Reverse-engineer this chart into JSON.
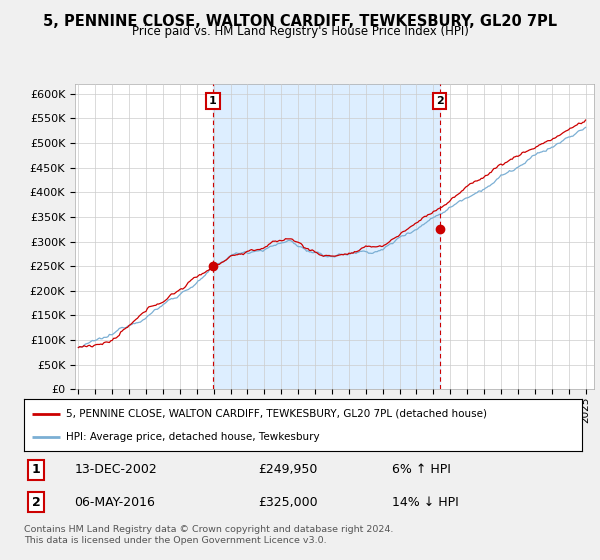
{
  "title": "5, PENNINE CLOSE, WALTON CARDIFF, TEWKESBURY, GL20 7PL",
  "subtitle": "Price paid vs. HM Land Registry's House Price Index (HPI)",
  "ylabel_ticks": [
    "£0",
    "£50K",
    "£100K",
    "£150K",
    "£200K",
    "£250K",
    "£300K",
    "£350K",
    "£400K",
    "£450K",
    "£500K",
    "£550K",
    "£600K"
  ],
  "ytick_values": [
    0,
    50000,
    100000,
    150000,
    200000,
    250000,
    300000,
    350000,
    400000,
    450000,
    500000,
    550000,
    600000
  ],
  "ylim": [
    0,
    620000
  ],
  "xlim_start": 1994.8,
  "xlim_end": 2025.5,
  "bg_color": "#f0f0f0",
  "plot_bg_color": "#ffffff",
  "grid_color": "#cccccc",
  "hpi_color": "#7bafd4",
  "price_color": "#cc0000",
  "shade_color": "#ddeeff",
  "marker1_date": 2002.96,
  "marker1_price": 249950,
  "marker1_label": "13-DEC-2002",
  "marker1_value": "£249,950",
  "marker1_pct": "6% ↑ HPI",
  "marker2_date": 2016.37,
  "marker2_price": 325000,
  "marker2_label": "06-MAY-2016",
  "marker2_value": "£325,000",
  "marker2_pct": "14% ↓ HPI",
  "legend_line1": "5, PENNINE CLOSE, WALTON CARDIFF, TEWKESBURY, GL20 7PL (detached house)",
  "legend_line2": "HPI: Average price, detached house, Tewkesbury",
  "footer": "Contains HM Land Registry data © Crown copyright and database right 2024.\nThis data is licensed under the Open Government Licence v3.0.",
  "xtick_years": [
    1995,
    1996,
    1997,
    1998,
    1999,
    2000,
    2001,
    2002,
    2003,
    2004,
    2005,
    2006,
    2007,
    2008,
    2009,
    2010,
    2011,
    2012,
    2013,
    2014,
    2015,
    2016,
    2017,
    2018,
    2019,
    2020,
    2021,
    2022,
    2023,
    2024,
    2025
  ]
}
